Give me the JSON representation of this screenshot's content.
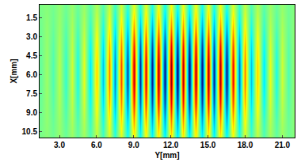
{
  "chart_data": {
    "type": "heatmap",
    "x_label": "Y[mm]",
    "y_label": "X[mm]",
    "grid": false,
    "xlim": [
      1.4,
      22.0
    ],
    "ylim": [
      11.0,
      0.5
    ],
    "xticks": [
      {
        "value": 3,
        "label": "3.0"
      },
      {
        "value": 6,
        "label": "6.0"
      },
      {
        "value": 9,
        "label": "9.0"
      },
      {
        "value": 12,
        "label": "12.0"
      },
      {
        "value": 15,
        "label": "15.0"
      },
      {
        "value": 18,
        "label": "18.0"
      },
      {
        "value": 21,
        "label": "21.0"
      }
    ],
    "yticks": [
      1.5,
      {
        "value": 3,
        "label": "3.0"
      },
      4.5,
      {
        "value": 6,
        "label": "6.0"
      },
      7.5,
      {
        "value": 9,
        "label": "9.0"
      },
      10.5
    ],
    "zlim": [
      -1,
      1
    ],
    "x": [
      1.5,
      2,
      2.5,
      3,
      3.5,
      4,
      4.5,
      5,
      5.5,
      6,
      6.5,
      7,
      7.5,
      8,
      8.5,
      9,
      9.5,
      10,
      10.5,
      11,
      11.5,
      12,
      12.5,
      13,
      13.5,
      14,
      14.5,
      15,
      15.5,
      16,
      16.5,
      17,
      17.5,
      18,
      18.5,
      19,
      19.5,
      20,
      20.5,
      21,
      21.5,
      22
    ],
    "y": [
      0.75,
      2.25,
      3.75,
      5.25,
      6.75,
      8.25,
      9.75,
      11.25
    ],
    "cells": [
      [
        -0.01,
        0.01,
        -0.03,
        0.03,
        -0.04,
        0.04,
        -0.05,
        0.05,
        -0.08,
        0.09,
        -0.1,
        0.13,
        -0.14,
        0.15,
        -0.18,
        0.21,
        -0.2,
        0.2,
        -0.21,
        0.23,
        -0.23,
        0.24,
        -0.24,
        0.23,
        -0.24,
        0.23,
        -0.23,
        0.23,
        -0.21,
        0.23,
        -0.21,
        0.19,
        -0.15,
        0.13,
        -0.1,
        0.09,
        -0.08,
        0.05,
        -0.05,
        0.04,
        -0.03,
        0.01
      ],
      [
        -0.03,
        0.03,
        -0.05,
        0.05,
        -0.08,
        0.08,
        -0.1,
        0.1,
        -0.15,
        0.18,
        -0.2,
        0.25,
        -0.28,
        0.3,
        -0.35,
        0.43,
        -0.4,
        0.4,
        -0.43,
        0.45,
        -0.45,
        0.48,
        -0.48,
        0.45,
        -0.48,
        0.45,
        -0.45,
        0.45,
        -0.43,
        0.45,
        -0.43,
        0.38,
        -0.3,
        0.25,
        -0.2,
        0.18,
        -0.15,
        0.1,
        -0.1,
        0.08,
        -0.05,
        0.03
      ],
      [
        -0.04,
        0.04,
        -0.08,
        0.08,
        -0.12,
        0.12,
        -0.16,
        0.16,
        -0.24,
        0.28,
        -0.32,
        0.4,
        -0.44,
        0.48,
        -0.56,
        0.68,
        -0.64,
        0.64,
        -0.68,
        0.72,
        -0.72,
        0.76,
        -0.76,
        0.72,
        -0.76,
        0.72,
        -0.72,
        0.72,
        -0.68,
        0.72,
        -0.68,
        0.6,
        -0.48,
        0.4,
        -0.32,
        0.28,
        -0.24,
        0.16,
        -0.16,
        0.12,
        -0.08,
        0.04
      ],
      [
        -0.05,
        0.05,
        -0.1,
        0.1,
        -0.15,
        0.15,
        -0.2,
        0.2,
        -0.3,
        0.35,
        -0.4,
        0.5,
        -0.55,
        0.6,
        -0.7,
        0.85,
        -0.8,
        0.8,
        -0.85,
        0.9,
        -0.9,
        0.95,
        -0.95,
        0.9,
        -0.95,
        0.9,
        -0.9,
        0.9,
        -0.85,
        0.9,
        -0.85,
        0.75,
        -0.6,
        0.5,
        -0.4,
        0.35,
        -0.3,
        0.2,
        -0.2,
        0.15,
        -0.1,
        0.05
      ],
      [
        -0.05,
        0.05,
        -0.1,
        0.1,
        -0.15,
        0.15,
        -0.2,
        0.2,
        -0.3,
        0.35,
        -0.4,
        0.5,
        -0.55,
        0.6,
        -0.7,
        0.85,
        -0.8,
        0.8,
        -0.85,
        0.9,
        -0.9,
        0.95,
        -0.95,
        0.9,
        -0.95,
        0.9,
        -0.9,
        0.9,
        -0.85,
        0.9,
        -0.85,
        0.75,
        -0.6,
        0.5,
        -0.4,
        0.35,
        -0.3,
        0.2,
        -0.2,
        0.15,
        -0.1,
        0.05
      ],
      [
        -0.04,
        0.04,
        -0.08,
        0.08,
        -0.12,
        0.12,
        -0.16,
        0.16,
        -0.24,
        0.28,
        -0.32,
        0.4,
        -0.44,
        0.48,
        -0.56,
        0.68,
        -0.64,
        0.64,
        -0.68,
        0.72,
        -0.72,
        0.76,
        -0.76,
        0.72,
        -0.76,
        0.72,
        -0.72,
        0.72,
        -0.68,
        0.72,
        -0.68,
        0.6,
        -0.48,
        0.4,
        -0.32,
        0.28,
        -0.24,
        0.16,
        -0.16,
        0.12,
        -0.08,
        0.04
      ],
      [
        -0.03,
        0.03,
        -0.05,
        0.05,
        -0.08,
        0.08,
        -0.1,
        0.1,
        -0.15,
        0.18,
        -0.2,
        0.25,
        -0.28,
        0.3,
        -0.35,
        0.43,
        -0.4,
        0.4,
        -0.43,
        0.45,
        -0.45,
        0.48,
        -0.48,
        0.45,
        -0.48,
        0.45,
        -0.45,
        0.45,
        -0.43,
        0.45,
        -0.43,
        0.38,
        -0.3,
        0.25,
        -0.2,
        0.18,
        -0.15,
        0.1,
        -0.1,
        0.08,
        -0.05,
        0.03
      ],
      [
        -0.01,
        0.01,
        -0.03,
        0.03,
        -0.04,
        0.04,
        -0.05,
        0.05,
        -0.08,
        0.09,
        -0.1,
        0.13,
        -0.14,
        0.15,
        -0.18,
        0.21,
        -0.2,
        0.2,
        -0.21,
        0.23,
        -0.23,
        0.24,
        -0.24,
        0.23,
        -0.24,
        0.23,
        -0.23,
        0.23,
        -0.21,
        0.23,
        -0.21,
        0.19,
        -0.15,
        0.13,
        -0.1,
        0.09,
        -0.08,
        0.05,
        -0.05,
        0.04,
        -0.03,
        0.01
      ]
    ]
  }
}
